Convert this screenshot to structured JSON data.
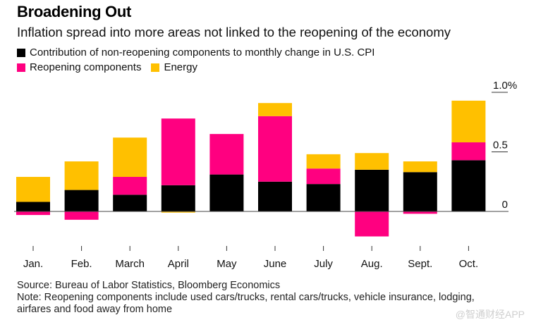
{
  "header": {
    "title": "Broadening Out",
    "subtitle": "Inflation spread into more areas not linked to the reopening of the economy"
  },
  "legend": [
    {
      "label": "Contribution of non-reopening components to monthly change in U.S. CPI",
      "color": "#000000"
    },
    {
      "label": "Reopening components",
      "color": "#ff0080"
    },
    {
      "label": "Energy",
      "color": "#ffc000"
    }
  ],
  "footer": {
    "source": "Source: Bureau of Labor Statistics, Bloomberg Economics",
    "note_line1": "Note: Reopening components include used cars/trucks, rental cars/trucks, vehicle insurance, lodging,",
    "note_line2": "airfares and food away from home",
    "watermark": "@智通财经APP"
  },
  "chart_data": {
    "type": "bar",
    "stacked": true,
    "title": "Broadening Out",
    "subtitle": "Inflation spread into more areas not linked to the reopening of the economy",
    "xlabel": "",
    "ylabel": "",
    "ylim": [
      -0.25,
      1.0
    ],
    "y_ticks": [
      {
        "value": 1.0,
        "label": "1.0%"
      },
      {
        "value": 0.5,
        "label": "0.5"
      },
      {
        "value": 0,
        "label": "0"
      }
    ],
    "y_axis_side": "right",
    "grid": false,
    "legend_position": "top-left",
    "categories": [
      "Jan.",
      "Feb.",
      "March",
      "April",
      "May",
      "June",
      "July",
      "Aug.",
      "Sept.",
      "Oct."
    ],
    "series": [
      {
        "name": "Contribution of non-reopening components to monthly change in U.S. CPI",
        "color": "#000000",
        "values": [
          0.08,
          0.18,
          0.14,
          0.22,
          0.31,
          0.25,
          0.23,
          0.35,
          0.33,
          0.43
        ]
      },
      {
        "name": "Reopening components",
        "color": "#ff0080",
        "values": [
          -0.03,
          -0.07,
          0.15,
          0.56,
          0.34,
          0.55,
          0.13,
          -0.21,
          -0.02,
          0.15
        ]
      },
      {
        "name": "Energy",
        "color": "#ffc000",
        "values": [
          0.21,
          0.24,
          0.33,
          -0.01,
          0.0,
          0.11,
          0.12,
          0.14,
          0.09,
          0.35
        ]
      }
    ]
  }
}
